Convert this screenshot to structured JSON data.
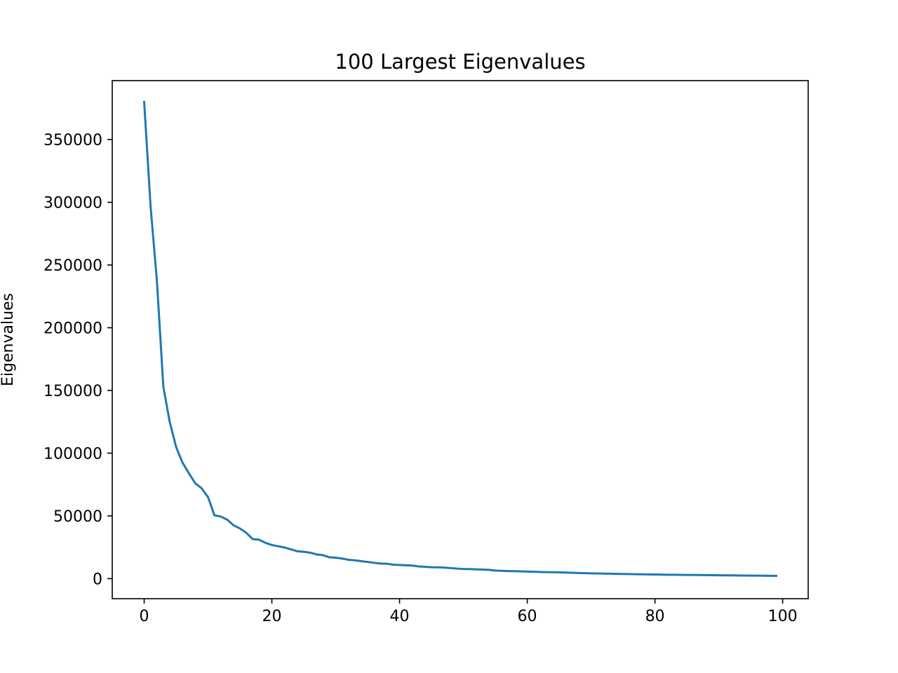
{
  "chart_data": {
    "type": "line",
    "title": "100 Largest Eigenvalues",
    "xlabel": "",
    "ylabel": "Eigenvalues",
    "xlim": [
      -5,
      104
    ],
    "ylim": [
      -16000,
      397000
    ],
    "xticks": [
      0,
      20,
      40,
      60,
      80,
      100
    ],
    "yticks": [
      0,
      50000,
      100000,
      150000,
      200000,
      250000,
      300000,
      350000
    ],
    "xtick_labels": [
      "0",
      "20",
      "40",
      "60",
      "80",
      "100"
    ],
    "ytick_labels": [
      "0",
      "50000",
      "100000",
      "150000",
      "200000",
      "250000",
      "300000",
      "350000"
    ],
    "grid": false,
    "series": [
      {
        "color": "#1f77b4",
        "x": [
          0,
          1,
          2,
          3,
          4,
          5,
          6,
          7,
          8,
          9,
          10,
          11,
          12,
          13,
          14,
          15,
          16,
          17,
          18,
          19,
          20,
          21,
          22,
          23,
          24,
          25,
          26,
          27,
          28,
          29,
          30,
          31,
          32,
          33,
          34,
          35,
          36,
          37,
          38,
          39,
          40,
          41,
          42,
          43,
          44,
          45,
          46,
          47,
          48,
          49,
          50,
          51,
          52,
          53,
          54,
          55,
          56,
          57,
          58,
          59,
          60,
          61,
          62,
          63,
          64,
          65,
          66,
          67,
          68,
          69,
          70,
          71,
          72,
          73,
          74,
          75,
          76,
          77,
          78,
          79,
          80,
          81,
          82,
          83,
          84,
          85,
          86,
          87,
          88,
          89,
          90,
          91,
          92,
          93,
          94,
          95,
          96,
          97,
          98,
          99
        ],
        "values": [
          380000,
          297000,
          237000,
          153000,
          125000,
          105000,
          92500,
          84000,
          76000,
          72000,
          65000,
          50500,
          49500,
          47000,
          42500,
          40000,
          36500,
          31500,
          31000,
          28500,
          26800,
          25800,
          24800,
          23300,
          21800,
          21400,
          20700,
          19300,
          18700,
          17000,
          16700,
          16000,
          15000,
          14600,
          13900,
          13300,
          12600,
          12000,
          11900,
          11100,
          10900,
          10600,
          10400,
          9700,
          9400,
          9100,
          9000,
          8800,
          8400,
          8000,
          7700,
          7600,
          7400,
          7200,
          7000,
          6400,
          6200,
          6000,
          5900,
          5800,
          5600,
          5500,
          5300,
          5200,
          5100,
          5000,
          4800,
          4700,
          4500,
          4400,
          4200,
          4100,
          4000,
          3900,
          3800,
          3700,
          3600,
          3500,
          3400,
          3350,
          3300,
          3200,
          3100,
          3050,
          3000,
          2950,
          2900,
          2850,
          2800,
          2700,
          2650,
          2600,
          2550,
          2500,
          2450,
          2400,
          2350,
          2300,
          2250,
          2200
        ]
      }
    ]
  }
}
